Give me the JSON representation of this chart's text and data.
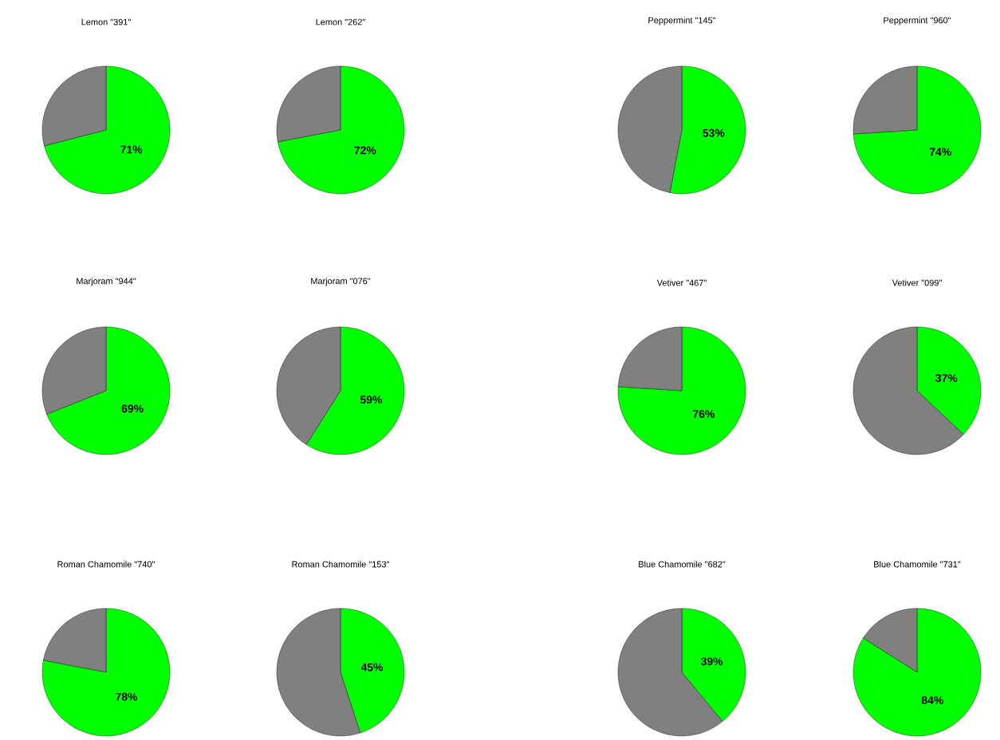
{
  "chart_data": [
    {
      "type": "pie",
      "title": "Lemon \"391\"",
      "categories": [
        null,
        null
      ],
      "values": [
        71,
        29
      ],
      "colors": [
        "#00ff00",
        "#808080"
      ],
      "value_labels": [
        "71%",
        null
      ]
    },
    {
      "type": "pie",
      "title": "Lemon \"262\"",
      "categories": [
        null,
        null
      ],
      "values": [
        72,
        28
      ],
      "colors": [
        "#00ff00",
        "#808080"
      ],
      "value_labels": [
        "72%",
        null
      ]
    },
    {
      "type": "pie",
      "title": "Peppermint \"145\"",
      "categories": [
        null,
        null
      ],
      "values": [
        53,
        47
      ],
      "colors": [
        "#00ff00",
        "#808080"
      ],
      "value_labels": [
        "53%",
        null
      ]
    },
    {
      "type": "pie",
      "title": "Peppermint \"960\"",
      "categories": [
        null,
        null
      ],
      "values": [
        74,
        26
      ],
      "colors": [
        "#00ff00",
        "#808080"
      ],
      "value_labels": [
        "74%",
        null
      ]
    },
    {
      "type": "pie",
      "title": "Marjoram \"944\"",
      "categories": [
        null,
        null
      ],
      "values": [
        69,
        31
      ],
      "colors": [
        "#00ff00",
        "#808080"
      ],
      "value_labels": [
        "69%",
        null
      ]
    },
    {
      "type": "pie",
      "title": "Marjoram \"076\"",
      "categories": [
        null,
        null
      ],
      "values": [
        59,
        41
      ],
      "colors": [
        "#00ff00",
        "#808080"
      ],
      "value_labels": [
        "59%",
        null
      ]
    },
    {
      "type": "pie",
      "title": "Vetiver \"467\"",
      "categories": [
        null,
        null
      ],
      "values": [
        76,
        24
      ],
      "colors": [
        "#00ff00",
        "#808080"
      ],
      "value_labels": [
        "76%",
        null
      ]
    },
    {
      "type": "pie",
      "title": "Vetiver \"099\"",
      "categories": [
        null,
        null
      ],
      "values": [
        37,
        63
      ],
      "colors": [
        "#00ff00",
        "#808080"
      ],
      "value_labels": [
        "37%",
        null
      ]
    },
    {
      "type": "pie",
      "title": "Roman Chamomile \"740\"",
      "categories": [
        null,
        null
      ],
      "values": [
        78,
        22
      ],
      "colors": [
        "#00ff00",
        "#808080"
      ],
      "value_labels": [
        "78%",
        null
      ]
    },
    {
      "type": "pie",
      "title": "Roman Chamomile \"153\"",
      "categories": [
        null,
        null
      ],
      "values": [
        45,
        55
      ],
      "colors": [
        "#00ff00",
        "#808080"
      ],
      "value_labels": [
        "45%",
        null
      ]
    },
    {
      "type": "pie",
      "title": "Blue Chamomile \"682\"",
      "categories": [
        null,
        null
      ],
      "values": [
        39,
        61
      ],
      "colors": [
        "#00ff00",
        "#808080"
      ],
      "value_labels": [
        "39%",
        null
      ]
    },
    {
      "type": "pie",
      "title": "Blue Chamomile \"731\"",
      "categories": [
        null,
        null
      ],
      "values": [
        84,
        16
      ],
      "colors": [
        "#00ff00",
        "#808080"
      ],
      "value_labels": [
        "84%",
        null
      ]
    }
  ]
}
